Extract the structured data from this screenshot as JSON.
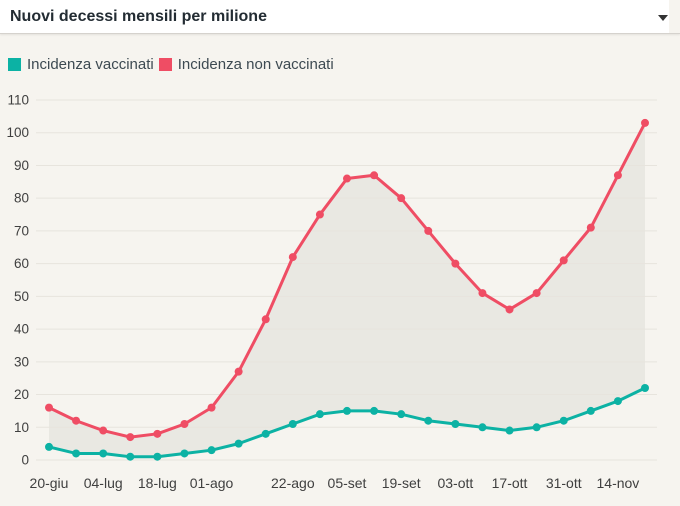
{
  "header": {
    "title": "Nuovi decessi mensili per milione"
  },
  "legend": {
    "items": [
      {
        "label": "Incidenza vaccinati",
        "color": "#0cb2a4"
      },
      {
        "label": "Incidenza non vaccinati",
        "color": "#ef4d64"
      }
    ]
  },
  "colors": {
    "page_background": "#f6f4ef",
    "header_background": "#ffffff",
    "header_border": "#d5d2cd",
    "title_text": "#232c33",
    "axis_text": "#3f3f3f",
    "gridline": "#e7e4dd",
    "band_fill": "#e9e8e2",
    "series_vaccinati": "#0cb2a4",
    "series_non_vaccinati": "#ef4d64"
  },
  "chart_data": {
    "type": "line",
    "title": "Nuovi decessi mensili per milione",
    "x": [
      "20-giu",
      "27-giu",
      "04-lug",
      "11-lug",
      "18-lug",
      "25-lug",
      "01-ago",
      "08-ago",
      "15-ago",
      "22-ago",
      "29-ago",
      "05-set",
      "12-set",
      "19-set",
      "26-set",
      "03-ott",
      "10-ott",
      "17-ott",
      "24-ott",
      "31-ott",
      "07-nov",
      "14-nov",
      "21-nov"
    ],
    "x_tick_indices": [
      0,
      2,
      4,
      6,
      9,
      11,
      13,
      15,
      17,
      19,
      21
    ],
    "x_tick_labels": [
      "20-giu",
      "04-lug",
      "18-lug",
      "01-ago",
      "22-ago",
      "05-set",
      "19-set",
      "03-ott",
      "17-ott",
      "31-ott",
      "14-nov"
    ],
    "y_ticks": [
      0,
      10,
      20,
      30,
      40,
      50,
      60,
      70,
      80,
      90,
      100,
      110
    ],
    "ylim": [
      0,
      110
    ],
    "grid": "horizontal",
    "legend_position": "top-left",
    "marker": "circle",
    "fill_between_series": true,
    "series": [
      {
        "name": "Incidenza vaccinati",
        "color": "#0cb2a4",
        "values": [
          4,
          2,
          2,
          1,
          1,
          2,
          3,
          5,
          8,
          11,
          14,
          15,
          15,
          14,
          12,
          11,
          10,
          9,
          10,
          12,
          15,
          18,
          22
        ]
      },
      {
        "name": "Incidenza non vaccinati",
        "color": "#ef4d64",
        "values": [
          16,
          12,
          9,
          7,
          8,
          11,
          16,
          27,
          43,
          62,
          75,
          86,
          87,
          80,
          70,
          60,
          51,
          46,
          51,
          61,
          71,
          87,
          103
        ]
      }
    ]
  }
}
